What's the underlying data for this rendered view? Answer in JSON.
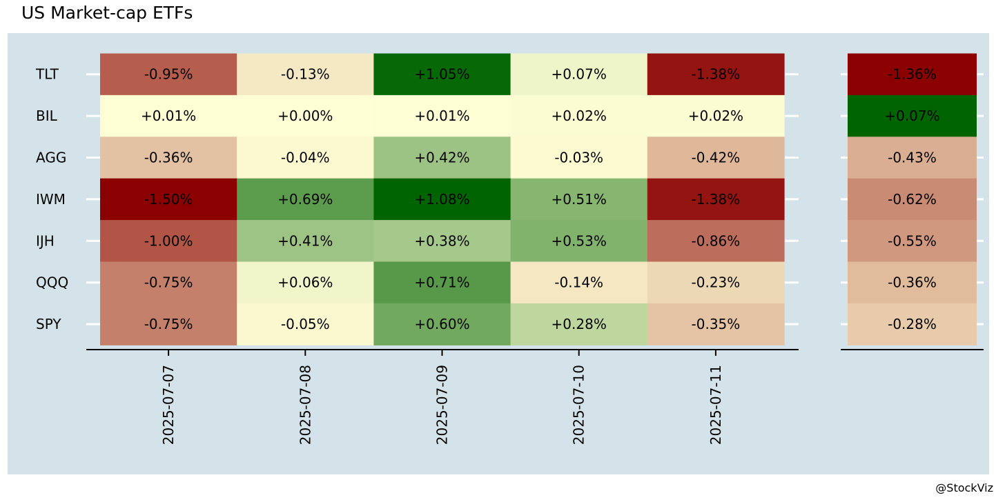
{
  "title": "US Market-cap ETFs",
  "credit": "@StockViz",
  "colors": {
    "panel_bg": "#d4e3ea",
    "neg_strong": "#8b0000",
    "neutral": "#ffffd6",
    "pos_strong": "#006400",
    "axis": "#000000",
    "tick": "#ffffff"
  },
  "chart_data": [
    {
      "type": "heatmap",
      "x": [
        "2025-07-07",
        "2025-07-08",
        "2025-07-09",
        "2025-07-10",
        "2025-07-11"
      ],
      "y": [
        "TLT",
        "BIL",
        "AGG",
        "IWM",
        "IJH",
        "QQQ",
        "SPY"
      ],
      "values": [
        [
          -0.95,
          -0.13,
          1.05,
          0.07,
          -1.38
        ],
        [
          0.01,
          0.0,
          0.01,
          0.02,
          0.02
        ],
        [
          -0.36,
          -0.04,
          0.42,
          -0.03,
          -0.42
        ],
        [
          -1.5,
          0.69,
          1.08,
          0.51,
          -1.38
        ],
        [
          -1.0,
          0.41,
          0.38,
          0.53,
          -0.86
        ],
        [
          -0.75,
          0.06,
          0.71,
          -0.14,
          -0.23
        ],
        [
          -0.75,
          -0.05,
          0.6,
          0.28,
          -0.35
        ]
      ],
      "labels": [
        [
          "-0.95%",
          "-0.13%",
          "+1.05%",
          "+0.07%",
          "-1.38%"
        ],
        [
          "+0.01%",
          "+0.00%",
          "+0.01%",
          "+0.02%",
          "+0.02%"
        ],
        [
          "-0.36%",
          "-0.04%",
          "+0.42%",
          "-0.03%",
          "-0.42%"
        ],
        [
          "-1.50%",
          "+0.69%",
          "+1.08%",
          "+0.51%",
          "-1.38%"
        ],
        [
          "-1.00%",
          "+0.41%",
          "+0.38%",
          "+0.53%",
          "-0.86%"
        ],
        [
          "-0.75%",
          "+0.06%",
          "+0.71%",
          "-0.14%",
          "-0.23%"
        ],
        [
          "-0.75%",
          "-0.05%",
          "+0.60%",
          "+0.28%",
          "-0.35%"
        ]
      ],
      "color_scale": "diverging red-yellow-green",
      "grid": false
    },
    {
      "type": "heatmap",
      "y": [
        "TLT",
        "BIL",
        "AGG",
        "IWM",
        "IJH",
        "QQQ",
        "SPY"
      ],
      "values": [
        -1.36,
        0.07,
        -0.43,
        -0.62,
        -0.55,
        -0.36,
        -0.28
      ],
      "labels": [
        "-1.36%",
        "+0.07%",
        "-0.43%",
        "-0.62%",
        "-0.55%",
        "-0.36%",
        "-0.28%"
      ],
      "color_scale": "diverging red-yellow-green",
      "grid": false
    }
  ]
}
